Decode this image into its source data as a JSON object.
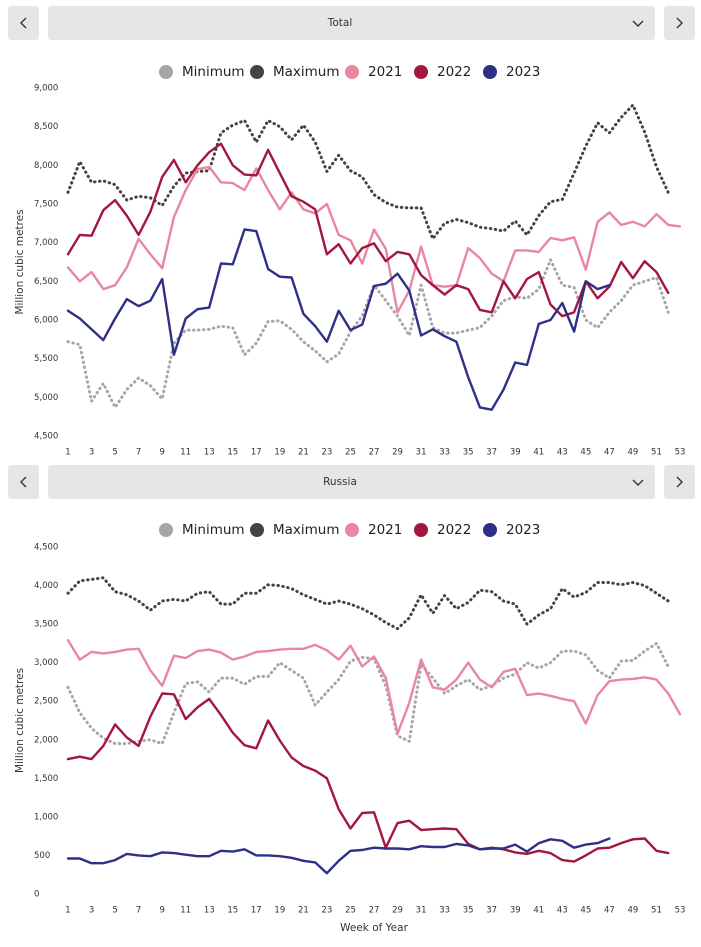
{
  "chart_data": [
    {
      "type": "line",
      "title": "Total",
      "ylabel": "Million cubic metres",
      "x": [
        1,
        2,
        3,
        4,
        5,
        6,
        7,
        8,
        9,
        10,
        11,
        12,
        13,
        14,
        15,
        16,
        17,
        18,
        19,
        20,
        21,
        22,
        23,
        24,
        25,
        26,
        27,
        28,
        29,
        30,
        31,
        32,
        33,
        34,
        35,
        36,
        37,
        38,
        39,
        40,
        41,
        42,
        43,
        44,
        45,
        46,
        47,
        48,
        49,
        50,
        51,
        52,
        53
      ],
      "xlim": [
        1,
        53
      ],
      "xticks": [
        1,
        3,
        5,
        7,
        9,
        11,
        13,
        15,
        17,
        19,
        21,
        23,
        25,
        27,
        29,
        31,
        33,
        35,
        37,
        39,
        41,
        43,
        45,
        47,
        49,
        51,
        53
      ],
      "ylim": [
        4500,
        9000
      ],
      "yticks": [
        {
          "value": 4500,
          "label": "4,500"
        },
        {
          "value": 5000,
          "label": "5,000"
        },
        {
          "value": 5500,
          "label": "5,500"
        },
        {
          "value": 6000,
          "label": "6,000"
        },
        {
          "value": 6500,
          "label": "6,500"
        },
        {
          "value": 7000,
          "label": "7,000"
        },
        {
          "value": 7500,
          "label": "7,500"
        },
        {
          "value": 8000,
          "label": "8,000"
        },
        {
          "value": 8500,
          "label": "8,500"
        },
        {
          "value": 9000,
          "label": "9,000"
        }
      ],
      "grid": false,
      "series": [
        {
          "name": "Minimum",
          "color": "#a6a6a6",
          "line_style": "dotted",
          "values": [
            5720,
            5680,
            4950,
            5180,
            4870,
            5100,
            5250,
            5150,
            4980,
            5700,
            5870,
            5870,
            5880,
            5920,
            5900,
            5550,
            5700,
            5980,
            5990,
            5880,
            5720,
            5600,
            5460,
            5560,
            5850,
            6050,
            6450,
            6250,
            6050,
            5800,
            6450,
            5900,
            5830,
            5830,
            5870,
            5900,
            6050,
            6250,
            6300,
            6280,
            6400,
            6780,
            6450,
            6420,
            6000,
            5900,
            6100,
            6250,
            6450,
            6500,
            6550,
            6100,
            null
          ]
        },
        {
          "name": "Maximum",
          "color": "#444444",
          "line_style": "dotted",
          "values": [
            7650,
            8050,
            7780,
            7800,
            7750,
            7550,
            7600,
            7580,
            7480,
            7730,
            7900,
            7920,
            7930,
            8420,
            8520,
            8580,
            8300,
            8580,
            8500,
            8330,
            8520,
            8300,
            7920,
            8130,
            7930,
            7850,
            7620,
            7520,
            7460,
            7450,
            7450,
            7050,
            7250,
            7300,
            7260,
            7200,
            7180,
            7150,
            7280,
            7100,
            7350,
            7530,
            7560,
            7900,
            8250,
            8550,
            8420,
            8620,
            8780,
            8430,
            7980,
            7650,
            null
          ]
        },
        {
          "name": "2021",
          "color": "#e8879f",
          "line_style": "solid",
          "values": [
            6680,
            6500,
            6620,
            6400,
            6450,
            6680,
            7050,
            6850,
            6670,
            7330,
            7680,
            7950,
            7980,
            7780,
            7770,
            7680,
            7960,
            7680,
            7430,
            7650,
            7430,
            7380,
            7500,
            7100,
            7030,
            6730,
            7170,
            6920,
            6100,
            6380,
            6950,
            6450,
            6430,
            6450,
            6930,
            6800,
            6600,
            6500,
            6900,
            6900,
            6880,
            7060,
            7030,
            7070,
            6650,
            7270,
            7390,
            7230,
            7270,
            7210,
            7370,
            7230,
            7210
          ]
        },
        {
          "name": "2022",
          "color": "#a3173f",
          "line_style": "solid",
          "values": [
            6850,
            7100,
            7090,
            7420,
            7550,
            7350,
            7100,
            7400,
            7850,
            8070,
            7780,
            8000,
            8170,
            8280,
            8000,
            7880,
            7870,
            8200,
            7900,
            7600,
            7530,
            7430,
            6850,
            6980,
            6730,
            6930,
            6990,
            6760,
            6880,
            6850,
            6580,
            6450,
            6330,
            6450,
            6400,
            6130,
            6100,
            6500,
            6280,
            6530,
            6620,
            6200,
            6050,
            6100,
            6500,
            6280,
            6430,
            6750,
            6540,
            6760,
            6620,
            6350,
            null
          ]
        },
        {
          "name": "2023",
          "color": "#2e3088",
          "line_style": "solid",
          "values": [
            6120,
            6020,
            5880,
            5740,
            6020,
            6270,
            6180,
            6250,
            6530,
            5550,
            6020,
            6140,
            6160,
            6730,
            6720,
            7170,
            7150,
            6660,
            6560,
            6550,
            6080,
            5920,
            5720,
            6120,
            5870,
            5940,
            6440,
            6470,
            6600,
            6380,
            5800,
            5880,
            5790,
            5720,
            5260,
            4870,
            4840,
            5100,
            5450,
            5420,
            5950,
            6000,
            6220,
            5850,
            6500,
            6400,
            6450,
            null,
            null,
            null,
            null,
            null,
            null
          ]
        }
      ]
    },
    {
      "type": "line",
      "title": "Russia",
      "ylabel": "Million cubic metres",
      "xlabel": "Week of Year",
      "x": [
        1,
        2,
        3,
        4,
        5,
        6,
        7,
        8,
        9,
        10,
        11,
        12,
        13,
        14,
        15,
        16,
        17,
        18,
        19,
        20,
        21,
        22,
        23,
        24,
        25,
        26,
        27,
        28,
        29,
        30,
        31,
        32,
        33,
        34,
        35,
        36,
        37,
        38,
        39,
        40,
        41,
        42,
        43,
        44,
        45,
        46,
        47,
        48,
        49,
        50,
        51,
        52,
        53
      ],
      "xlim": [
        1,
        53
      ],
      "xticks": [
        1,
        3,
        5,
        7,
        9,
        11,
        13,
        15,
        17,
        19,
        21,
        23,
        25,
        27,
        29,
        31,
        33,
        35,
        37,
        39,
        41,
        43,
        45,
        47,
        49,
        51,
        53
      ],
      "ylim": [
        0,
        4500
      ],
      "yticks": [
        0,
        500,
        {
          "value": 1000,
          "label": "1,000"
        },
        {
          "value": 1500,
          "label": "1,500"
        },
        {
          "value": 2000,
          "label": "2,000"
        },
        {
          "value": 2500,
          "label": "2,500"
        },
        {
          "value": 3000,
          "label": "3,000"
        },
        {
          "value": 3500,
          "label": "3,500"
        },
        {
          "value": 4000,
          "label": "4,000"
        },
        {
          "value": 4500,
          "label": "4,500"
        }
      ],
      "grid": false,
      "series": [
        {
          "name": "Minimum",
          "color": "#a6a6a6",
          "line_style": "dotted",
          "values": [
            2680,
            2350,
            2150,
            2020,
            1950,
            1950,
            1980,
            2000,
            1950,
            2350,
            2730,
            2750,
            2620,
            2800,
            2800,
            2720,
            2820,
            2820,
            3000,
            2900,
            2800,
            2450,
            2620,
            2780,
            3020,
            3070,
            3050,
            2700,
            2050,
            1980,
            2980,
            2800,
            2600,
            2700,
            2780,
            2650,
            2700,
            2800,
            2850,
            3000,
            2930,
            3000,
            3150,
            3150,
            3100,
            2900,
            2800,
            3020,
            3030,
            3150,
            3250,
            2950,
            null
          ]
        },
        {
          "name": "Maximum",
          "color": "#444444",
          "line_style": "dotted",
          "values": [
            3900,
            4060,
            4080,
            4100,
            3920,
            3880,
            3800,
            3680,
            3800,
            3820,
            3800,
            3900,
            3920,
            3760,
            3760,
            3900,
            3900,
            4010,
            4000,
            3960,
            3880,
            3820,
            3760,
            3800,
            3760,
            3700,
            3620,
            3520,
            3440,
            3580,
            3880,
            3640,
            3870,
            3700,
            3780,
            3940,
            3920,
            3800,
            3760,
            3500,
            3620,
            3700,
            3960,
            3850,
            3910,
            4040,
            4040,
            4010,
            4040,
            4000,
            3900,
            3800,
            null
          ]
        },
        {
          "name": "2021",
          "color": "#e8879f",
          "line_style": "solid",
          "values": [
            3290,
            3040,
            3140,
            3120,
            3140,
            3170,
            3180,
            2900,
            2700,
            3090,
            3060,
            3150,
            3170,
            3130,
            3040,
            3080,
            3140,
            3150,
            3170,
            3180,
            3180,
            3230,
            3160,
            3040,
            3220,
            2950,
            3080,
            2800,
            2080,
            2480,
            3040,
            2680,
            2650,
            2780,
            3000,
            2780,
            2680,
            2880,
            2920,
            2580,
            2600,
            2570,
            2530,
            2500,
            2210,
            2580,
            2760,
            2780,
            2790,
            2810,
            2780,
            2600,
            2330
          ]
        },
        {
          "name": "2022",
          "color": "#a3173f",
          "line_style": "solid",
          "values": [
            1750,
            1780,
            1750,
            1920,
            2200,
            2030,
            1920,
            2300,
            2600,
            2590,
            2270,
            2420,
            2530,
            2320,
            2090,
            1930,
            1890,
            2250,
            1990,
            1770,
            1660,
            1600,
            1500,
            1100,
            850,
            1050,
            1060,
            600,
            920,
            950,
            830,
            840,
            850,
            840,
            650,
            580,
            600,
            580,
            540,
            520,
            560,
            530,
            440,
            420,
            500,
            590,
            600,
            660,
            710,
            720,
            560,
            530,
            null
          ]
        },
        {
          "name": "2023",
          "color": "#2e3088",
          "line_style": "solid",
          "values": [
            460,
            460,
            400,
            400,
            440,
            520,
            500,
            490,
            540,
            530,
            510,
            490,
            490,
            560,
            550,
            580,
            500,
            500,
            490,
            470,
            430,
            410,
            270,
            430,
            560,
            570,
            600,
            590,
            590,
            580,
            620,
            610,
            610,
            650,
            630,
            580,
            590,
            590,
            640,
            550,
            660,
            710,
            690,
            600,
            640,
            660,
            720,
            null,
            null,
            null,
            null,
            null,
            null
          ]
        }
      ]
    }
  ]
}
